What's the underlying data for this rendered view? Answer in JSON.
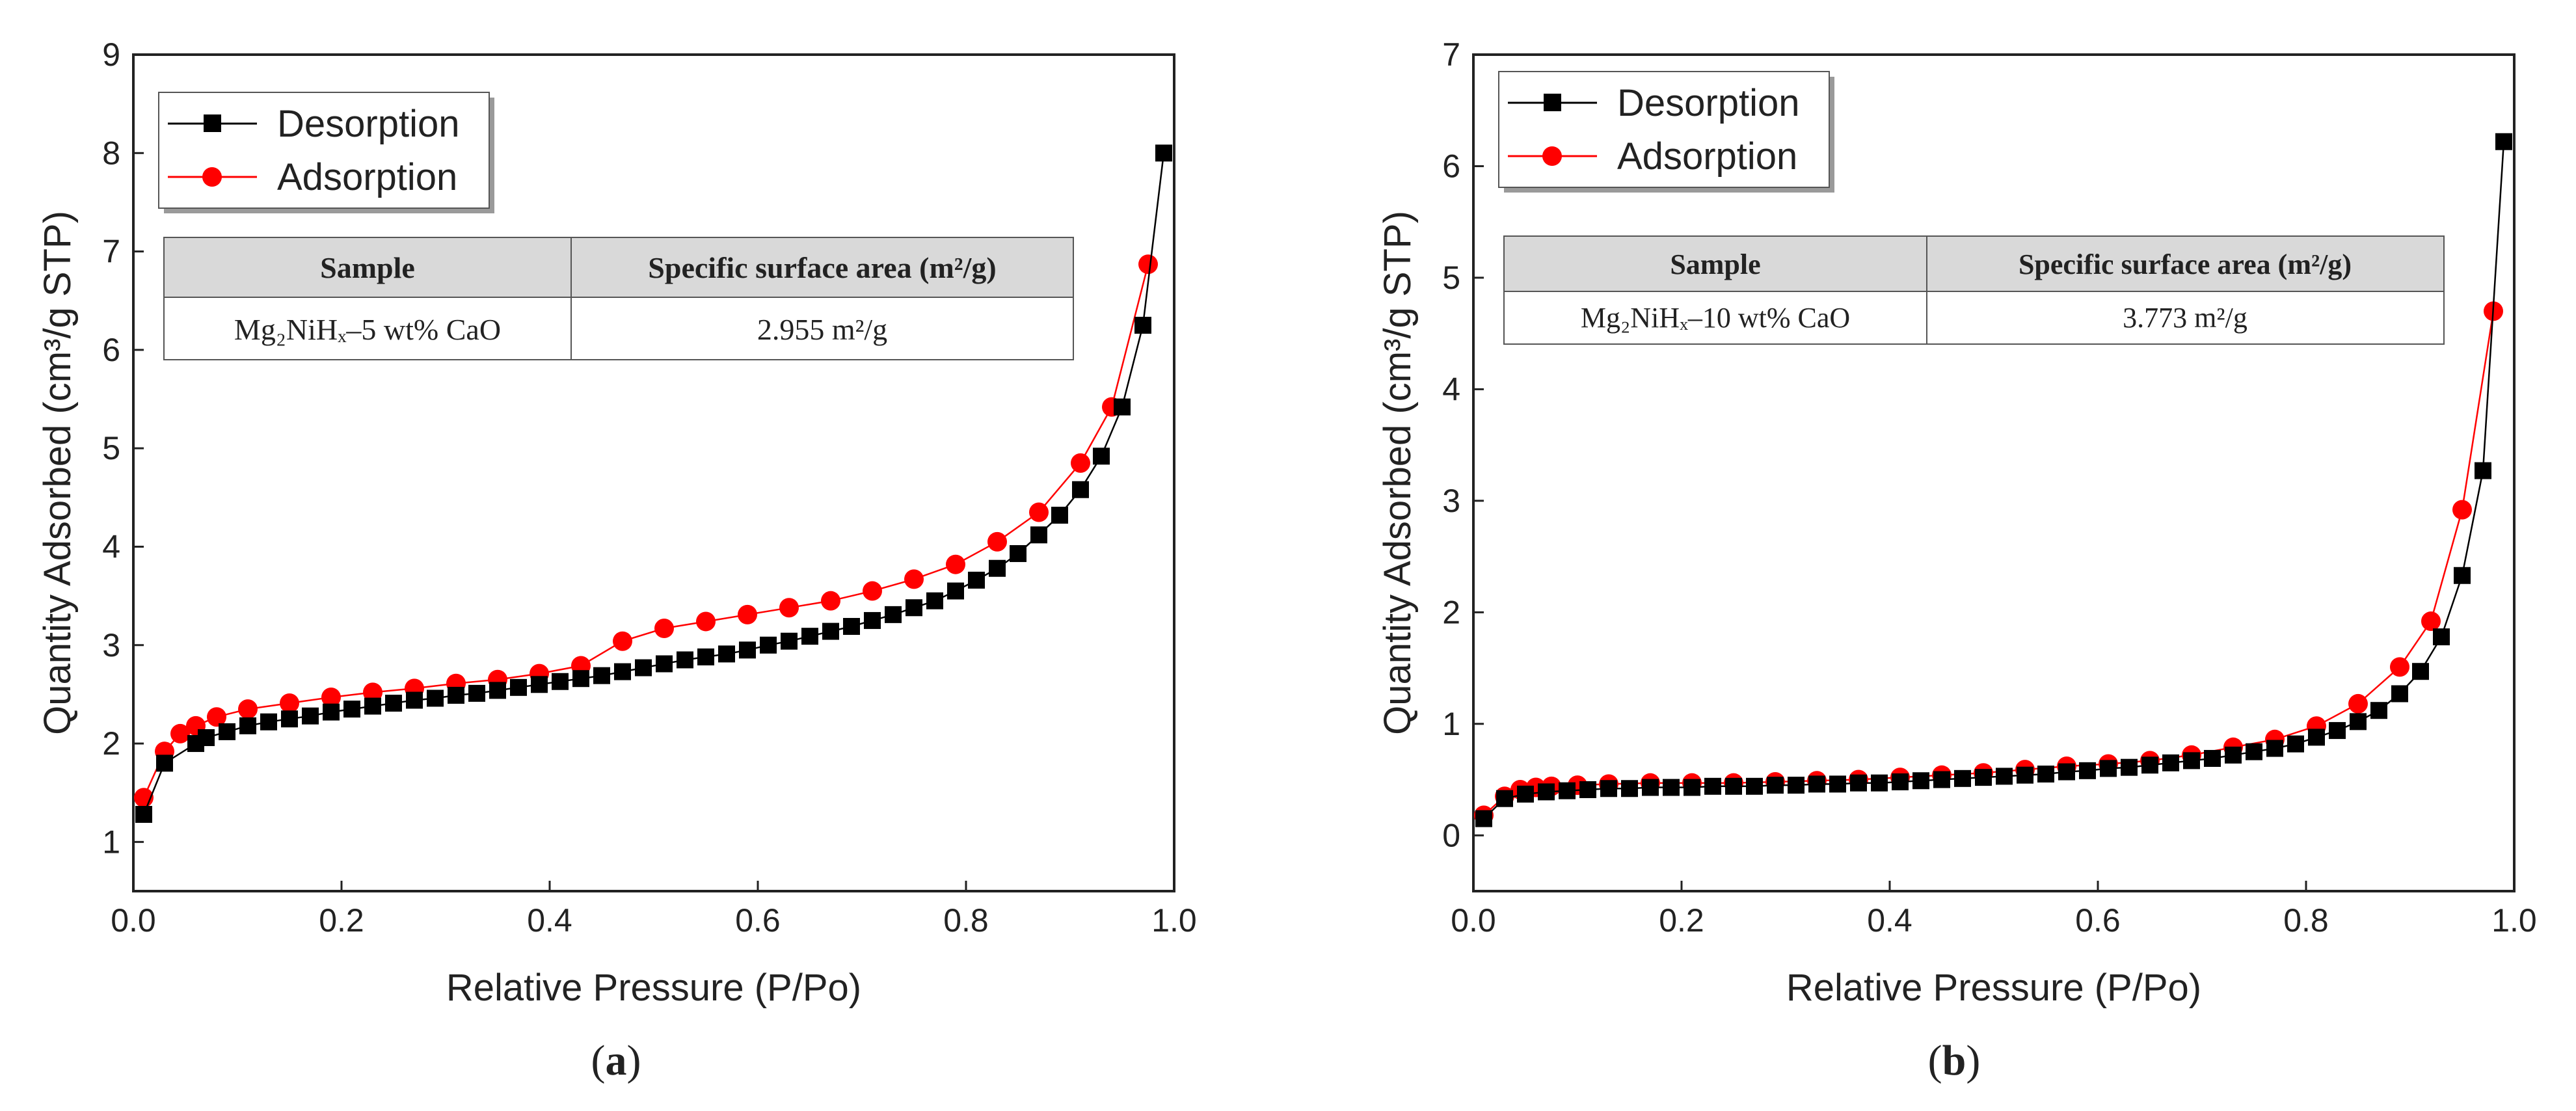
{
  "colors": {
    "desorption": "#000000",
    "adsorption": "#ff0000",
    "table_header_bg": "#d9d9d9"
  },
  "chart_data": [
    {
      "type": "line",
      "panel_label": "a",
      "xlabel": "Relative Pressure (P/Po)",
      "ylabel": "Quantity Adsorbed (cm³/g STP)",
      "xlim": [
        0.0,
        1.0
      ],
      "ylim": [
        0.5,
        9
      ],
      "x_ticks": [
        0.0,
        0.2,
        0.4,
        0.6,
        0.8,
        1.0
      ],
      "x_tick_labels": [
        "0.0",
        "0.2",
        "0.4",
        "0.6",
        "0.8",
        "1.0"
      ],
      "y_ticks": [
        1,
        2,
        3,
        4,
        5,
        6,
        7,
        8,
        9
      ],
      "y_tick_labels": [
        "1",
        "2",
        "3",
        "4",
        "5",
        "6",
        "7",
        "8",
        "9"
      ],
      "legend": [
        "Desorption",
        "Adsorption"
      ],
      "table": {
        "headers": [
          "Sample",
          "Specific surface area (m²/g)"
        ],
        "sample": "Mg₂NiHₓ–5 wt% CaO",
        "area": "2.955 m²/g"
      },
      "series": [
        {
          "name": "Desorption",
          "marker": "square",
          "points": [
            [
              0.01,
              1.28
            ],
            [
              0.03,
              1.8
            ],
            [
              0.06,
              2.0
            ],
            [
              0.07,
              2.06
            ],
            [
              0.09,
              2.12
            ],
            [
              0.11,
              2.18
            ],
            [
              0.13,
              2.22
            ],
            [
              0.15,
              2.25
            ],
            [
              0.17,
              2.28
            ],
            [
              0.19,
              2.32
            ],
            [
              0.21,
              2.35
            ],
            [
              0.23,
              2.38
            ],
            [
              0.25,
              2.41
            ],
            [
              0.27,
              2.44
            ],
            [
              0.29,
              2.46
            ],
            [
              0.31,
              2.49
            ],
            [
              0.33,
              2.51
            ],
            [
              0.35,
              2.54
            ],
            [
              0.37,
              2.57
            ],
            [
              0.39,
              2.6
            ],
            [
              0.41,
              2.63
            ],
            [
              0.43,
              2.66
            ],
            [
              0.45,
              2.69
            ],
            [
              0.47,
              2.73
            ],
            [
              0.49,
              2.77
            ],
            [
              0.51,
              2.81
            ],
            [
              0.53,
              2.85
            ],
            [
              0.55,
              2.88
            ],
            [
              0.57,
              2.91
            ],
            [
              0.59,
              2.95
            ],
            [
              0.61,
              3.0
            ],
            [
              0.63,
              3.04
            ],
            [
              0.65,
              3.09
            ],
            [
              0.67,
              3.14
            ],
            [
              0.69,
              3.19
            ],
            [
              0.71,
              3.25
            ],
            [
              0.73,
              3.31
            ],
            [
              0.75,
              3.38
            ],
            [
              0.77,
              3.45
            ],
            [
              0.79,
              3.55
            ],
            [
              0.81,
              3.66
            ],
            [
              0.83,
              3.78
            ],
            [
              0.85,
              3.93
            ],
            [
              0.87,
              4.12
            ],
            [
              0.89,
              4.32
            ],
            [
              0.91,
              4.58
            ],
            [
              0.93,
              4.92
            ],
            [
              0.95,
              5.42
            ],
            [
              0.97,
              6.25
            ],
            [
              0.99,
              8.0
            ]
          ]
        },
        {
          "name": "Adsorption",
          "marker": "circle",
          "points": [
            [
              0.01,
              1.45
            ],
            [
              0.03,
              1.92
            ],
            [
              0.045,
              2.1
            ],
            [
              0.06,
              2.18
            ],
            [
              0.08,
              2.27
            ],
            [
              0.11,
              2.35
            ],
            [
              0.15,
              2.41
            ],
            [
              0.19,
              2.47
            ],
            [
              0.23,
              2.52
            ],
            [
              0.27,
              2.56
            ],
            [
              0.31,
              2.61
            ],
            [
              0.35,
              2.65
            ],
            [
              0.39,
              2.71
            ],
            [
              0.43,
              2.79
            ],
            [
              0.47,
              3.04
            ],
            [
              0.51,
              3.17
            ],
            [
              0.55,
              3.24
            ],
            [
              0.59,
              3.31
            ],
            [
              0.63,
              3.38
            ],
            [
              0.67,
              3.45
            ],
            [
              0.71,
              3.55
            ],
            [
              0.75,
              3.67
            ],
            [
              0.79,
              3.82
            ],
            [
              0.83,
              4.05
            ],
            [
              0.87,
              4.35
            ],
            [
              0.91,
              4.85
            ],
            [
              0.94,
              5.42
            ],
            [
              0.975,
              6.87
            ]
          ]
        }
      ]
    },
    {
      "type": "line",
      "panel_label": "b",
      "xlabel": "Relative Pressure (P/Po)",
      "ylabel": "Quantity Adsorbed (cm³/g STP)",
      "xlim": [
        0.0,
        1.0
      ],
      "ylim": [
        -0.5,
        7
      ],
      "x_ticks": [
        0.0,
        0.2,
        0.4,
        0.6,
        0.8,
        1.0
      ],
      "x_tick_labels": [
        "0.0",
        "0.2",
        "0.4",
        "0.6",
        "0.8",
        "1.0"
      ],
      "y_ticks": [
        0,
        1,
        2,
        3,
        4,
        5,
        6,
        7
      ],
      "y_tick_labels": [
        "0",
        "1",
        "2",
        "3",
        "4",
        "5",
        "6",
        "7"
      ],
      "legend": [
        "Desorption",
        "Adsorption"
      ],
      "table": {
        "headers": [
          "Sample",
          "Specific surface area (m²/g)"
        ],
        "sample": "Mg₂NiHₓ–10 wt% CaO",
        "area": "3.773 m²/g"
      },
      "series": [
        {
          "name": "Desorption",
          "marker": "square",
          "points": [
            [
              0.01,
              0.15
            ],
            [
              0.03,
              0.33
            ],
            [
              0.05,
              0.37
            ],
            [
              0.07,
              0.39
            ],
            [
              0.09,
              0.4
            ],
            [
              0.11,
              0.41
            ],
            [
              0.13,
              0.42
            ],
            [
              0.15,
              0.42
            ],
            [
              0.17,
              0.43
            ],
            [
              0.19,
              0.43
            ],
            [
              0.21,
              0.43
            ],
            [
              0.23,
              0.44
            ],
            [
              0.25,
              0.44
            ],
            [
              0.27,
              0.44
            ],
            [
              0.29,
              0.45
            ],
            [
              0.31,
              0.45
            ],
            [
              0.33,
              0.46
            ],
            [
              0.35,
              0.46
            ],
            [
              0.37,
              0.47
            ],
            [
              0.39,
              0.47
            ],
            [
              0.41,
              0.48
            ],
            [
              0.43,
              0.49
            ],
            [
              0.45,
              0.5
            ],
            [
              0.47,
              0.51
            ],
            [
              0.49,
              0.52
            ],
            [
              0.51,
              0.53
            ],
            [
              0.53,
              0.54
            ],
            [
              0.55,
              0.55
            ],
            [
              0.57,
              0.57
            ],
            [
              0.59,
              0.58
            ],
            [
              0.61,
              0.6
            ],
            [
              0.63,
              0.61
            ],
            [
              0.65,
              0.63
            ],
            [
              0.67,
              0.65
            ],
            [
              0.69,
              0.67
            ],
            [
              0.71,
              0.69
            ],
            [
              0.73,
              0.72
            ],
            [
              0.75,
              0.75
            ],
            [
              0.77,
              0.78
            ],
            [
              0.79,
              0.82
            ],
            [
              0.81,
              0.88
            ],
            [
              0.83,
              0.94
            ],
            [
              0.85,
              1.02
            ],
            [
              0.87,
              1.12
            ],
            [
              0.89,
              1.27
            ],
            [
              0.91,
              1.47
            ],
            [
              0.93,
              1.78
            ],
            [
              0.95,
              2.33
            ],
            [
              0.97,
              3.27
            ],
            [
              0.99,
              6.22
            ]
          ]
        },
        {
          "name": "Adsorption",
          "marker": "circle",
          "points": [
            [
              0.01,
              0.18
            ],
            [
              0.03,
              0.35
            ],
            [
              0.045,
              0.41
            ],
            [
              0.06,
              0.43
            ],
            [
              0.075,
              0.44
            ],
            [
              0.1,
              0.45
            ],
            [
              0.13,
              0.46
            ],
            [
              0.17,
              0.47
            ],
            [
              0.21,
              0.47
            ],
            [
              0.25,
              0.47
            ],
            [
              0.29,
              0.48
            ],
            [
              0.33,
              0.49
            ],
            [
              0.37,
              0.5
            ],
            [
              0.41,
              0.52
            ],
            [
              0.45,
              0.54
            ],
            [
              0.49,
              0.56
            ],
            [
              0.53,
              0.59
            ],
            [
              0.57,
              0.62
            ],
            [
              0.61,
              0.64
            ],
            [
              0.65,
              0.67
            ],
            [
              0.69,
              0.72
            ],
            [
              0.73,
              0.79
            ],
            [
              0.77,
              0.86
            ],
            [
              0.81,
              0.98
            ],
            [
              0.85,
              1.18
            ],
            [
              0.89,
              1.51
            ],
            [
              0.92,
              1.92
            ],
            [
              0.95,
              2.92
            ],
            [
              0.98,
              4.7
            ]
          ]
        }
      ]
    }
  ]
}
